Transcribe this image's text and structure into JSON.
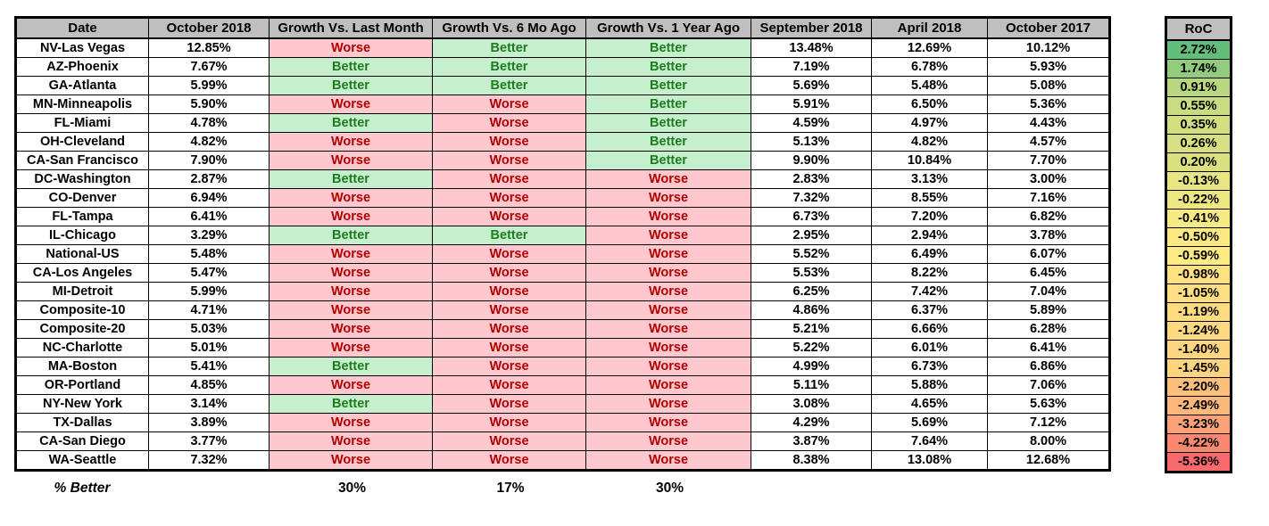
{
  "colors": {
    "header_fill": "#BFBFBF",
    "better_fill": "#C6EFCE",
    "worse_fill": "#FFC7CE",
    "better_text": "#1E7B1E",
    "worse_text": "#B00000",
    "border": "#000000"
  },
  "main_table": {
    "columns": [
      "Date",
      "October 2018",
      "Growth Vs. Last Month",
      "Growth Vs. 6 Mo Ago",
      "Growth Vs. 1 Year Ago",
      "September 2018",
      "April 2018",
      "October 2017"
    ],
    "rows": [
      {
        "date": "NV-Las Vegas",
        "oct_2018": "12.85%",
        "vs_last_month": "Worse",
        "vs_6_mo_ago": "Better",
        "vs_1_year_ago": "Better",
        "sep_2018": "13.48%",
        "apr_2018": "12.69%",
        "oct_2017": "10.12%"
      },
      {
        "date": "AZ-Phoenix",
        "oct_2018": "7.67%",
        "vs_last_month": "Better",
        "vs_6_mo_ago": "Better",
        "vs_1_year_ago": "Better",
        "sep_2018": "7.19%",
        "apr_2018": "6.78%",
        "oct_2017": "5.93%"
      },
      {
        "date": "GA-Atlanta",
        "oct_2018": "5.99%",
        "vs_last_month": "Better",
        "vs_6_mo_ago": "Better",
        "vs_1_year_ago": "Better",
        "sep_2018": "5.69%",
        "apr_2018": "5.48%",
        "oct_2017": "5.08%"
      },
      {
        "date": "MN-Minneapolis",
        "oct_2018": "5.90%",
        "vs_last_month": "Worse",
        "vs_6_mo_ago": "Worse",
        "vs_1_year_ago": "Better",
        "sep_2018": "5.91%",
        "apr_2018": "6.50%",
        "oct_2017": "5.36%"
      },
      {
        "date": "FL-Miami",
        "oct_2018": "4.78%",
        "vs_last_month": "Better",
        "vs_6_mo_ago": "Worse",
        "vs_1_year_ago": "Better",
        "sep_2018": "4.59%",
        "apr_2018": "4.97%",
        "oct_2017": "4.43%"
      },
      {
        "date": "OH-Cleveland",
        "oct_2018": "4.82%",
        "vs_last_month": "Worse",
        "vs_6_mo_ago": "Worse",
        "vs_1_year_ago": "Better",
        "sep_2018": "5.13%",
        "apr_2018": "4.82%",
        "oct_2017": "4.57%"
      },
      {
        "date": "CA-San Francisco",
        "oct_2018": "7.90%",
        "vs_last_month": "Worse",
        "vs_6_mo_ago": "Worse",
        "vs_1_year_ago": "Better",
        "sep_2018": "9.90%",
        "apr_2018": "10.84%",
        "oct_2017": "7.70%"
      },
      {
        "date": "DC-Washington",
        "oct_2018": "2.87%",
        "vs_last_month": "Better",
        "vs_6_mo_ago": "Worse",
        "vs_1_year_ago": "Worse",
        "sep_2018": "2.83%",
        "apr_2018": "3.13%",
        "oct_2017": "3.00%"
      },
      {
        "date": "CO-Denver",
        "oct_2018": "6.94%",
        "vs_last_month": "Worse",
        "vs_6_mo_ago": "Worse",
        "vs_1_year_ago": "Worse",
        "sep_2018": "7.32%",
        "apr_2018": "8.55%",
        "oct_2017": "7.16%"
      },
      {
        "date": "FL-Tampa",
        "oct_2018": "6.41%",
        "vs_last_month": "Worse",
        "vs_6_mo_ago": "Worse",
        "vs_1_year_ago": "Worse",
        "sep_2018": "6.73%",
        "apr_2018": "7.20%",
        "oct_2017": "6.82%"
      },
      {
        "date": "IL-Chicago",
        "oct_2018": "3.29%",
        "vs_last_month": "Better",
        "vs_6_mo_ago": "Better",
        "vs_1_year_ago": "Worse",
        "sep_2018": "2.95%",
        "apr_2018": "2.94%",
        "oct_2017": "3.78%"
      },
      {
        "date": "National-US",
        "oct_2018": "5.48%",
        "vs_last_month": "Worse",
        "vs_6_mo_ago": "Worse",
        "vs_1_year_ago": "Worse",
        "sep_2018": "5.52%",
        "apr_2018": "6.49%",
        "oct_2017": "6.07%"
      },
      {
        "date": "CA-Los Angeles",
        "oct_2018": "5.47%",
        "vs_last_month": "Worse",
        "vs_6_mo_ago": "Worse",
        "vs_1_year_ago": "Worse",
        "sep_2018": "5.53%",
        "apr_2018": "8.22%",
        "oct_2017": "6.45%"
      },
      {
        "date": "MI-Detroit",
        "oct_2018": "5.99%",
        "vs_last_month": "Worse",
        "vs_6_mo_ago": "Worse",
        "vs_1_year_ago": "Worse",
        "sep_2018": "6.25%",
        "apr_2018": "7.42%",
        "oct_2017": "7.04%"
      },
      {
        "date": "Composite-10",
        "oct_2018": "4.71%",
        "vs_last_month": "Worse",
        "vs_6_mo_ago": "Worse",
        "vs_1_year_ago": "Worse",
        "sep_2018": "4.86%",
        "apr_2018": "6.37%",
        "oct_2017": "5.89%"
      },
      {
        "date": "Composite-20",
        "oct_2018": "5.03%",
        "vs_last_month": "Worse",
        "vs_6_mo_ago": "Worse",
        "vs_1_year_ago": "Worse",
        "sep_2018": "5.21%",
        "apr_2018": "6.66%",
        "oct_2017": "6.28%"
      },
      {
        "date": "NC-Charlotte",
        "oct_2018": "5.01%",
        "vs_last_month": "Worse",
        "vs_6_mo_ago": "Worse",
        "vs_1_year_ago": "Worse",
        "sep_2018": "5.22%",
        "apr_2018": "6.01%",
        "oct_2017": "6.41%"
      },
      {
        "date": "MA-Boston",
        "oct_2018": "5.41%",
        "vs_last_month": "Better",
        "vs_6_mo_ago": "Worse",
        "vs_1_year_ago": "Worse",
        "sep_2018": "4.99%",
        "apr_2018": "6.73%",
        "oct_2017": "6.86%"
      },
      {
        "date": "OR-Portland",
        "oct_2018": "4.85%",
        "vs_last_month": "Worse",
        "vs_6_mo_ago": "Worse",
        "vs_1_year_ago": "Worse",
        "sep_2018": "5.11%",
        "apr_2018": "5.88%",
        "oct_2017": "7.06%"
      },
      {
        "date": "NY-New York",
        "oct_2018": "3.14%",
        "vs_last_month": "Better",
        "vs_6_mo_ago": "Worse",
        "vs_1_year_ago": "Worse",
        "sep_2018": "3.08%",
        "apr_2018": "4.65%",
        "oct_2017": "5.63%"
      },
      {
        "date": "TX-Dallas",
        "oct_2018": "3.89%",
        "vs_last_month": "Worse",
        "vs_6_mo_ago": "Worse",
        "vs_1_year_ago": "Worse",
        "sep_2018": "4.29%",
        "apr_2018": "5.69%",
        "oct_2017": "7.12%"
      },
      {
        "date": "CA-San Diego",
        "oct_2018": "3.77%",
        "vs_last_month": "Worse",
        "vs_6_mo_ago": "Worse",
        "vs_1_year_ago": "Worse",
        "sep_2018": "3.87%",
        "apr_2018": "7.64%",
        "oct_2017": "8.00%"
      },
      {
        "date": "WA-Seattle",
        "oct_2018": "7.32%",
        "vs_last_month": "Worse",
        "vs_6_mo_ago": "Worse",
        "vs_1_year_ago": "Worse",
        "sep_2018": "8.38%",
        "apr_2018": "13.08%",
        "oct_2017": "12.68%"
      }
    ]
  },
  "footer": {
    "label": "% Better",
    "vs_last_month": "30%",
    "vs_6_mo_ago": "17%",
    "vs_1_year_ago": "30%"
  },
  "roc_table": {
    "header": "RoC",
    "rows": [
      {
        "value": "2.72%",
        "fill": "#63BE7B"
      },
      {
        "value": "1.74%",
        "fill": "#91CB7E"
      },
      {
        "value": "0.91%",
        "fill": "#B8D780"
      },
      {
        "value": "0.55%",
        "fill": "#C9DC81"
      },
      {
        "value": "0.35%",
        "fill": "#D3DE81"
      },
      {
        "value": "0.26%",
        "fill": "#D7DF82"
      },
      {
        "value": "0.20%",
        "fill": "#DAE082"
      },
      {
        "value": "-0.13%",
        "fill": "#E9E583"
      },
      {
        "value": "-0.22%",
        "fill": "#EEE683"
      },
      {
        "value": "-0.41%",
        "fill": "#F7E984"
      },
      {
        "value": "-0.50%",
        "fill": "#FBEA84"
      },
      {
        "value": "-0.59%",
        "fill": "#FFEB84"
      },
      {
        "value": "-0.98%",
        "fill": "#FEE082"
      },
      {
        "value": "-1.05%",
        "fill": "#FEDE82"
      },
      {
        "value": "-1.19%",
        "fill": "#FEDB81"
      },
      {
        "value": "-1.24%",
        "fill": "#FED981"
      },
      {
        "value": "-1.40%",
        "fill": "#FED580"
      },
      {
        "value": "-1.45%",
        "fill": "#FED480"
      },
      {
        "value": "-2.20%",
        "fill": "#FDBF7C"
      },
      {
        "value": "-2.49%",
        "fill": "#FCB77A"
      },
      {
        "value": "-3.23%",
        "fill": "#FBA376"
      },
      {
        "value": "-4.22%",
        "fill": "#FA8871"
      },
      {
        "value": "-5.36%",
        "fill": "#F8696B"
      }
    ]
  }
}
